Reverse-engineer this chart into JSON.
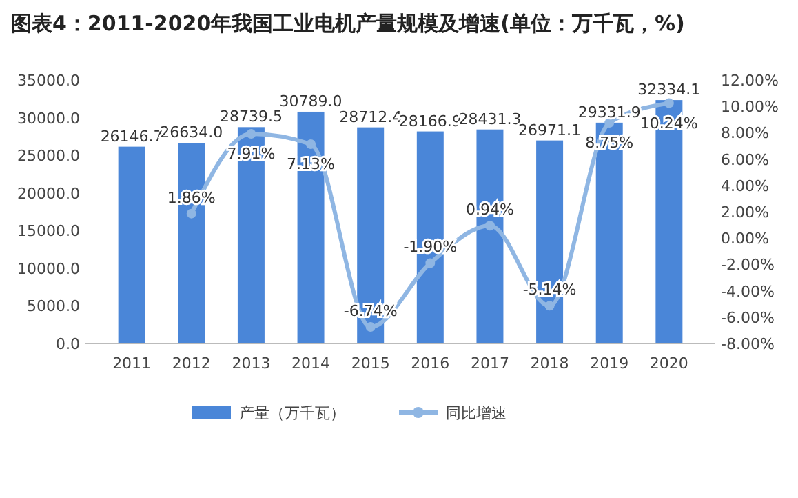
{
  "chart_data": {
    "type": "bar",
    "title": "图表4：2011-2020年我国工业电机产量规模及增速(单位：万千瓦，%)",
    "categories": [
      "2011",
      "2012",
      "2013",
      "2014",
      "2015",
      "2016",
      "2017",
      "2018",
      "2019",
      "2020"
    ],
    "series": [
      {
        "name": "产量（万千瓦）",
        "color": "#4a86d8",
        "values": [
          26146.7,
          26634.0,
          28739.5,
          30789.0,
          28712.4,
          28166.9,
          28431.3,
          26971.1,
          29331.9,
          32334.1
        ],
        "value_labels": [
          "26146.7",
          "26634.0",
          "28739.5",
          "30789.0",
          "28712.4",
          "28166.9",
          "28431.3",
          "26971.1",
          "29331.9",
          "32334.1"
        ]
      },
      {
        "name": "同比增速",
        "type": "line",
        "axis": "y2",
        "color": "#8fb6e3",
        "marker": "circle",
        "values": [
          null,
          1.86,
          7.91,
          7.13,
          -6.74,
          -1.9,
          0.94,
          -5.14,
          8.75,
          10.24
        ],
        "value_labels": [
          null,
          "1.86%",
          "7.91%",
          "7.13%",
          "-6.74%",
          "-1.90%",
          "0.94%",
          "-5.14%",
          "8.75%",
          "10.24%"
        ]
      }
    ],
    "ylim": [
      0,
      35000
    ],
    "yticks": [
      {
        "value": 0,
        "label": "0.0"
      },
      {
        "value": 5000,
        "label": "5000.0"
      },
      {
        "value": 10000,
        "label": "10000.0"
      },
      {
        "value": 15000,
        "label": "15000.0"
      },
      {
        "value": 20000,
        "label": "20000.0"
      },
      {
        "value": 25000,
        "label": "25000.0"
      },
      {
        "value": 30000,
        "label": "30000.0"
      },
      {
        "value": 35000,
        "label": "35000.0"
      }
    ],
    "y2lim": [
      -8,
      12
    ],
    "y2ticks": [
      {
        "value": -8,
        "label": "-8.00%"
      },
      {
        "value": -6,
        "label": "-6.00%"
      },
      {
        "value": -4,
        "label": "-4.00%"
      },
      {
        "value": -2,
        "label": "-2.00%"
      },
      {
        "value": 0,
        "label": "0.00%"
      },
      {
        "value": 2,
        "label": "2.00%"
      },
      {
        "value": 4,
        "label": "4.00%"
      },
      {
        "value": 6,
        "label": "6.00%"
      },
      {
        "value": 8,
        "label": "8.00%"
      },
      {
        "value": 10,
        "label": "10.00%"
      },
      {
        "value": 12,
        "label": "12.00%"
      }
    ],
    "legend": "bottom"
  }
}
